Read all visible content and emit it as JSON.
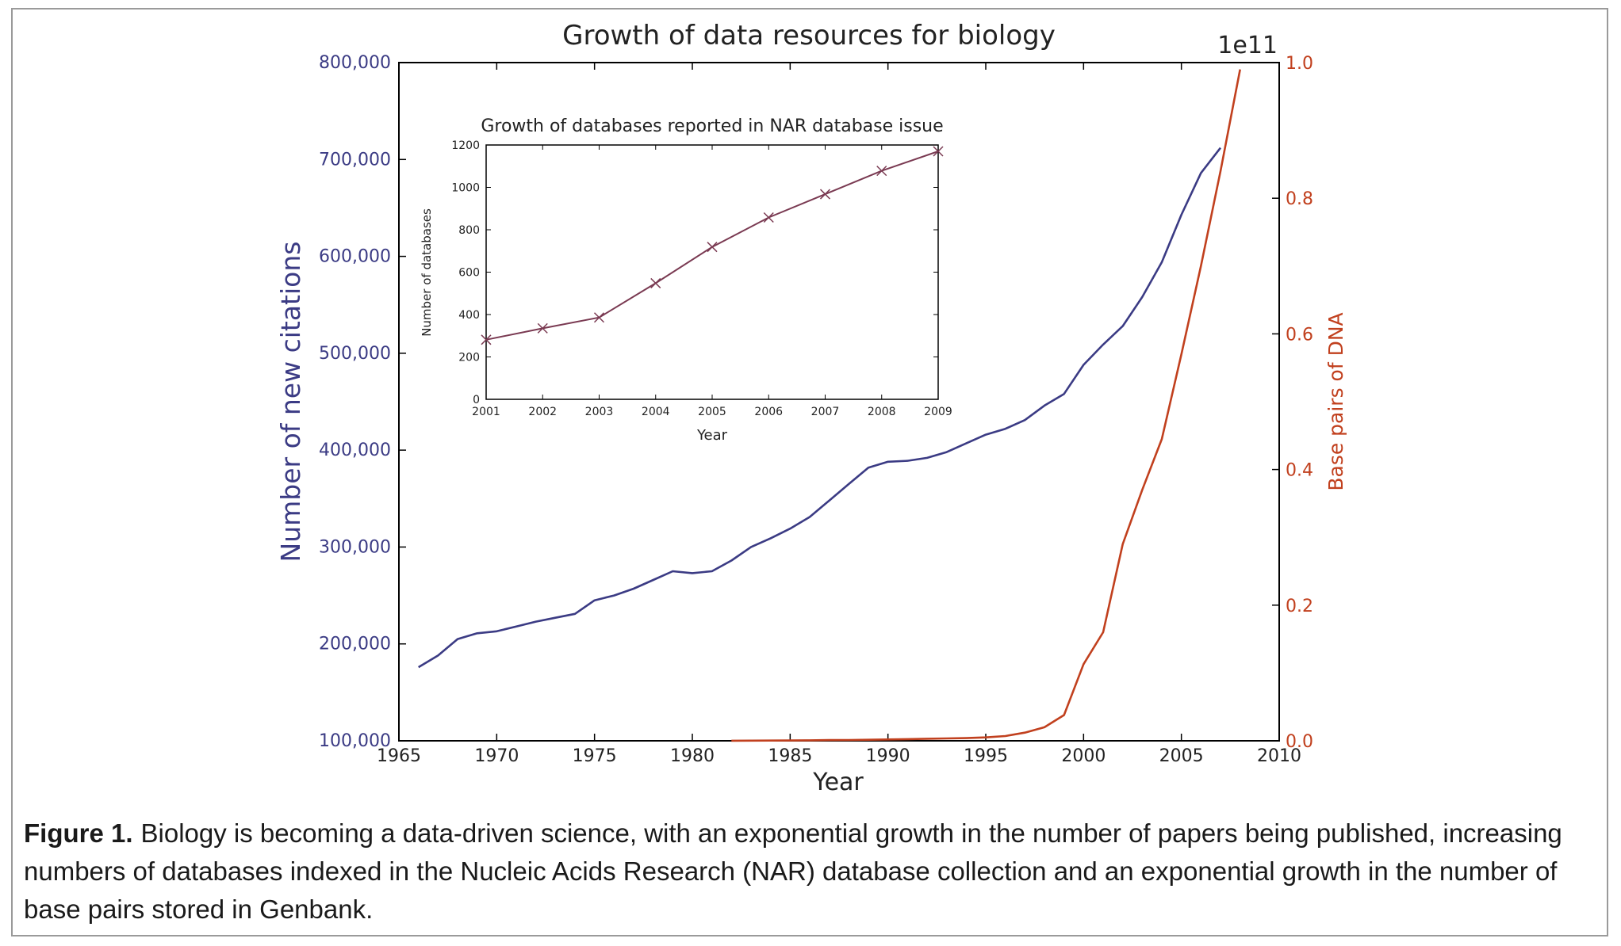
{
  "figure": {
    "caption_label": "Figure 1.",
    "caption_text": "Biology is becoming a data-driven science, with an exponential growth in the number of papers being published, increasing numbers of databases indexed in the Nucleic Acids Research (NAR) database collection and an exponential growth in the number of base pairs stored in Genbank."
  },
  "colors": {
    "citations": "#3b3b84",
    "dna": "#c1401e",
    "inset": "#7a3a52",
    "axis": "#000000"
  },
  "chart_data": [
    {
      "type": "line",
      "title": "Growth of data resources for biology",
      "xlabel": "Year",
      "ylabel": "Number of new citations",
      "y2label": "Base pairs of DNA",
      "y2_offset_text": "1e11",
      "xlim": [
        1965,
        2010
      ],
      "ylim": [
        100000,
        800000
      ],
      "y2lim": [
        0,
        1.0
      ],
      "x_ticks": [
        1965,
        1970,
        1975,
        1980,
        1985,
        1990,
        1995,
        2000,
        2005,
        2010
      ],
      "y_ticks": [
        100000,
        200000,
        300000,
        400000,
        500000,
        600000,
        700000,
        800000
      ],
      "y_tick_labels": [
        "100,000",
        "200,000",
        "300,000",
        "400,000",
        "500,000",
        "600,000",
        "700,000",
        "800,000"
      ],
      "y2_ticks": [
        0,
        0.2,
        0.4,
        0.6,
        0.8,
        1.0
      ],
      "y2_tick_labels": [
        "0.0",
        "0.2",
        "0.4",
        "0.6",
        "0.8",
        "1.0"
      ],
      "grid": false,
      "series": [
        {
          "axis": "left",
          "x": [
            1966,
            1967,
            1968,
            1969,
            1970,
            1971,
            1972,
            1973,
            1974,
            1975,
            1976,
            1977,
            1978,
            1979,
            1980,
            1981,
            1982,
            1983,
            1984,
            1985,
            1986,
            1987,
            1988,
            1989,
            1990,
            1991,
            1992,
            1993,
            1994,
            1995,
            1996,
            1997,
            1998,
            1999,
            2000,
            2001,
            2002,
            2003,
            2004,
            2005,
            2006,
            2007
          ],
          "values": [
            176000,
            188000,
            205000,
            211000,
            213000,
            218000,
            223000,
            227000,
            231000,
            245000,
            250000,
            257000,
            266000,
            275000,
            273000,
            275000,
            286000,
            300000,
            309000,
            319000,
            331000,
            348000,
            365000,
            382000,
            388000,
            389000,
            392000,
            398000,
            407000,
            416000,
            422000,
            431000,
            446000,
            458000,
            488000,
            509000,
            528000,
            558000,
            594000,
            643000,
            686000,
            712000
          ]
        },
        {
          "axis": "right",
          "x": [
            1982,
            1983,
            1984,
            1985,
            1986,
            1987,
            1988,
            1989,
            1990,
            1991,
            1992,
            1993,
            1994,
            1995,
            1996,
            1997,
            1998,
            1999,
            2000,
            2001,
            2002,
            2003,
            2004,
            2005,
            2006,
            2007,
            2008
          ],
          "values": [
            0.0001,
            0.0002,
            0.0003,
            0.0005,
            0.0007,
            0.001,
            0.0012,
            0.0015,
            0.002,
            0.0025,
            0.003,
            0.0035,
            0.004,
            0.005,
            0.007,
            0.012,
            0.02,
            0.038,
            0.113,
            0.16,
            0.29,
            0.37,
            0.445,
            0.57,
            0.7,
            0.84,
            0.99
          ]
        }
      ]
    },
    {
      "type": "line",
      "title": "Growth of databases reported in NAR database issue",
      "xlabel": "Year",
      "ylabel": "Number of databases",
      "xlim": [
        2001,
        2009
      ],
      "ylim": [
        0,
        1200
      ],
      "x_ticks": [
        2001,
        2002,
        2003,
        2004,
        2005,
        2006,
        2007,
        2008,
        2009
      ],
      "y_ticks": [
        0,
        200,
        400,
        600,
        800,
        1000,
        1200
      ],
      "marker": "x",
      "grid": false,
      "series": [
        {
          "x": [
            2001,
            2002,
            2003,
            2004,
            2005,
            2006,
            2007,
            2008,
            2009
          ],
          "values": [
            281,
            335,
            386,
            548,
            719,
            858,
            968,
            1078,
            1170
          ]
        }
      ]
    }
  ]
}
